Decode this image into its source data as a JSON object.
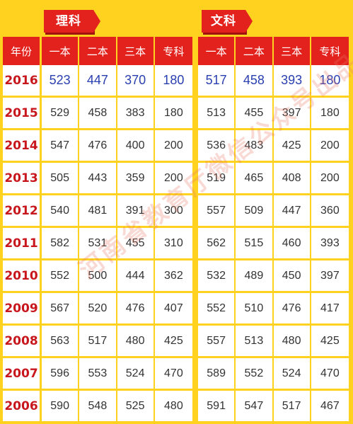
{
  "tabs": {
    "science": "理科",
    "arts": "文科"
  },
  "year_header": "年份",
  "columns": [
    "一本",
    "二本",
    "三本",
    "专科"
  ],
  "rows": [
    {
      "year": "2016",
      "science": [
        "523",
        "447",
        "370",
        "180"
      ],
      "arts": [
        "517",
        "458",
        "393",
        "180"
      ]
    },
    {
      "year": "2015",
      "science": [
        "529",
        "458",
        "383",
        "180"
      ],
      "arts": [
        "513",
        "455",
        "397",
        "180"
      ]
    },
    {
      "year": "2014",
      "science": [
        "547",
        "476",
        "400",
        "200"
      ],
      "arts": [
        "536",
        "483",
        "425",
        "200"
      ]
    },
    {
      "year": "2013",
      "science": [
        "505",
        "443",
        "359",
        "200"
      ],
      "arts": [
        "519",
        "465",
        "408",
        "200"
      ]
    },
    {
      "year": "2012",
      "science": [
        "540",
        "481",
        "391",
        "300"
      ],
      "arts": [
        "557",
        "509",
        "447",
        "360"
      ]
    },
    {
      "year": "2011",
      "science": [
        "582",
        "531",
        "455",
        "310"
      ],
      "arts": [
        "562",
        "515",
        "460",
        "393"
      ]
    },
    {
      "year": "2010",
      "science": [
        "552",
        "500",
        "444",
        "362"
      ],
      "arts": [
        "532",
        "489",
        "450",
        "397"
      ]
    },
    {
      "year": "2009",
      "science": [
        "567",
        "520",
        "476",
        "407"
      ],
      "arts": [
        "552",
        "510",
        "476",
        "417"
      ]
    },
    {
      "year": "2008",
      "science": [
        "563",
        "517",
        "480",
        "425"
      ],
      "arts": [
        "557",
        "513",
        "480",
        "425"
      ]
    },
    {
      "year": "2007",
      "science": [
        "596",
        "553",
        "524",
        "470"
      ],
      "arts": [
        "589",
        "552",
        "524",
        "470"
      ]
    },
    {
      "year": "2006",
      "science": [
        "590",
        "548",
        "525",
        "480"
      ],
      "arts": [
        "591",
        "547",
        "517",
        "467"
      ]
    }
  ],
  "watermark": "河南省教育厅微信公众号出品",
  "colors": {
    "background": "#ffd21f",
    "header_red": "#e3211d",
    "year_text": "#c8161d",
    "highlight_text": "#2a3fb0"
  }
}
